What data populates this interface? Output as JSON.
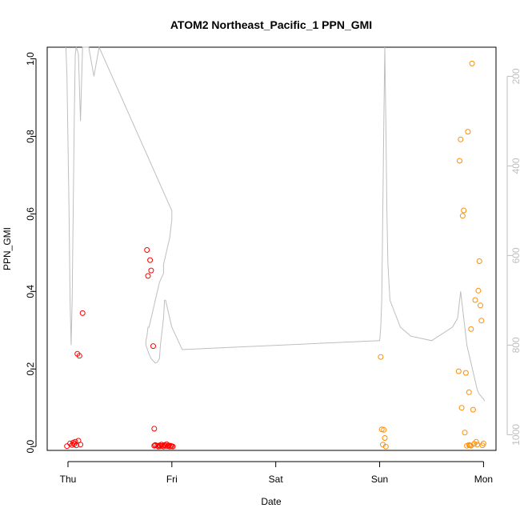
{
  "chart_data": {
    "type": "scatter",
    "title": "ATOM2 Northeast_Pacific_1 PPN_GMI",
    "xlabel": "Date",
    "ylabel": "PPN_GMI",
    "x_tick_labels": [
      "Thu",
      "Fri",
      "Sat",
      "Sun",
      "Mon"
    ],
    "x_tick_values": [
      0,
      1,
      2,
      3,
      4
    ],
    "xlim": [
      -0.2,
      4.12
    ],
    "ylim": [
      -0.01,
      1.03
    ],
    "y_ticks": [
      0.0,
      0.2,
      0.4,
      0.6,
      0.8,
      1.0
    ],
    "y_tick_labels": [
      "0.0",
      "0.2",
      "0.4",
      "0.6",
      "0.8",
      "1.0"
    ],
    "y2_ticks": [
      200,
      400,
      600,
      800,
      1000
    ],
    "y2_tick_labels": [
      "200",
      "400",
      "600",
      "800",
      "1000"
    ],
    "y2lim": [
      1035,
      135
    ],
    "grid": false,
    "colors": {
      "red": "#ff0000",
      "orange": "#ff8c00",
      "altitude": "#bebebe",
      "axis": "#000000",
      "y2_axis": "#bebebe"
    },
    "series": [
      {
        "color": "red",
        "x": [
          -0.01,
          0.02,
          0.04,
          0.05,
          0.06,
          0.07,
          0.08,
          0.1,
          0.12,
          0.09,
          0.11,
          0.14,
          0.76,
          0.77,
          0.79,
          0.8,
          0.82,
          0.83,
          0.84,
          0.86,
          0.87,
          0.88,
          0.89,
          0.9,
          0.91,
          0.92,
          0.93,
          0.94,
          0.95,
          0.96,
          0.97,
          0.98,
          0.99,
          1.0,
          1.01,
          0.84,
          0.83
        ],
        "y": [
          0.001,
          0.008,
          0.004,
          0.01,
          0.006,
          0.012,
          0.003,
          0.015,
          0.005,
          0.239,
          0.234,
          0.344,
          0.507,
          0.44,
          0.481,
          0.454,
          0.259,
          0.046,
          0.004,
          0.002,
          0.0,
          0.003,
          0.001,
          0.005,
          0.002,
          0.0,
          0.004,
          0.002,
          0.006,
          0.001,
          0.003,
          0.0,
          0.002,
          0.001,
          0.0,
          0.003,
          0.002
        ]
      },
      {
        "color": "orange",
        "x": [
          3.01,
          3.02,
          3.03,
          3.04,
          3.05,
          3.06,
          3.76,
          3.77,
          3.78,
          3.79,
          3.8,
          3.81,
          3.82,
          3.83,
          3.84,
          3.85,
          3.86,
          3.87,
          3.88,
          3.89,
          3.9,
          3.91,
          3.92,
          3.93,
          3.94,
          3.95,
          3.96,
          3.97,
          3.98,
          3.99,
          4.0,
          3.88,
          3.86
        ],
        "y": [
          0.231,
          0.044,
          0.005,
          0.043,
          0.022,
          0.0,
          0.194,
          0.737,
          0.792,
          0.1,
          0.595,
          0.609,
          0.036,
          0.19,
          0.002,
          0.812,
          0.14,
          0.003,
          0.303,
          0.988,
          0.095,
          0.007,
          0.378,
          0.012,
          0.005,
          0.402,
          0.478,
          0.364,
          0.325,
          0.003,
          0.008,
          0.002,
          0.004
        ]
      }
    ],
    "altitude_series": {
      "color": "altitude",
      "x": [
        -0.02,
        -0.01,
        0.0,
        0.01,
        0.02,
        0.03,
        0.04,
        0.05,
        0.06,
        0.07,
        0.08,
        0.1,
        0.12,
        0.14,
        0.2,
        0.25,
        0.3,
        1.0,
        1.0,
        0.99,
        0.98,
        0.96,
        0.94,
        0.92,
        0.92,
        0.9,
        0.88,
        0.86,
        0.84,
        0.82,
        0.8,
        0.78,
        0.77,
        0.76,
        0.75,
        0.75,
        0.78,
        0.8,
        0.82,
        0.84,
        0.86,
        0.88,
        0.89,
        0.9,
        0.91,
        0.92,
        0.93,
        0.94,
        0.95,
        0.96,
        0.97,
        0.98,
        0.99,
        1.0,
        1.01,
        1.02,
        1.03,
        1.04,
        1.05,
        1.06,
        1.07,
        1.08,
        1.09,
        1.1,
        3.0,
        3.01,
        3.02,
        3.03,
        3.04,
        3.05,
        3.06,
        3.07,
        3.08,
        3.1,
        3.2,
        3.3,
        3.5,
        3.7,
        3.75,
        3.76,
        3.77,
        3.78,
        3.79,
        3.8,
        3.81,
        3.82,
        3.83,
        3.84,
        3.85,
        3.86,
        3.87,
        3.88,
        3.89,
        3.9,
        3.91,
        3.92,
        3.93,
        3.94,
        3.95,
        3.96,
        3.97,
        3.98,
        3.99,
        4.0,
        4.01
      ],
      "y": [
        135,
        200,
        350,
        500,
        700,
        800,
        700,
        500,
        300,
        150,
        135,
        150,
        300,
        135,
        135,
        200,
        135,
        500,
        520,
        540,
        560,
        580,
        600,
        620,
        640,
        650,
        660,
        680,
        700,
        720,
        740,
        760,
        760,
        780,
        790,
        800,
        820,
        830,
        835,
        840,
        838,
        830,
        800,
        780,
        760,
        740,
        700,
        700,
        710,
        720,
        730,
        740,
        750,
        760,
        765,
        770,
        775,
        780,
        785,
        790,
        795,
        800,
        805,
        810,
        790,
        760,
        700,
        500,
        300,
        135,
        300,
        500,
        620,
        700,
        760,
        780,
        790,
        760,
        740,
        720,
        700,
        680,
        700,
        720,
        740,
        760,
        780,
        800,
        810,
        820,
        830,
        840,
        850,
        860,
        870,
        880,
        890,
        900,
        905,
        910,
        912,
        915,
        918,
        920,
        925
      ]
    }
  }
}
